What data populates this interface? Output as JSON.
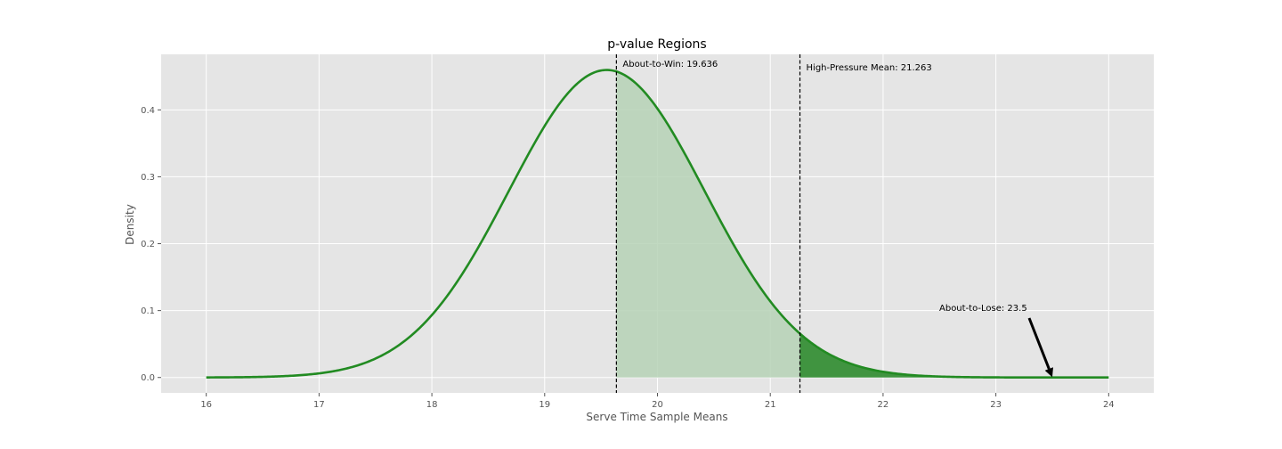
{
  "chart_data": {
    "type": "line",
    "title": "p-value Regions",
    "xlabel": "Serve Time Sample Means",
    "ylabel": "Density",
    "xlim": [
      15.6,
      24.4
    ],
    "ylim": [
      -0.023,
      0.483
    ],
    "xticks": [
      16,
      17,
      18,
      19,
      20,
      21,
      22,
      23,
      24
    ],
    "yticks": [
      0.0,
      0.1,
      0.2,
      0.3,
      0.4
    ],
    "ytick_labels": [
      "0.0",
      "0.1",
      "0.2",
      "0.3",
      "0.4"
    ],
    "grid": true,
    "distribution": {
      "mean": 19.55,
      "sd": 0.868,
      "x_min": 16,
      "x_max": 24
    },
    "series_color": "#228B22",
    "light_fill_color": "#b6d2b6",
    "dark_fill_color": "#2e8b2e",
    "plot_background": "#e5e5e5",
    "vlines": [
      {
        "x": 19.636,
        "label": "About-to-Win: 19.636"
      },
      {
        "x": 21.263,
        "label": "High-Pressure Mean: 21.263"
      }
    ],
    "shaded_regions": [
      {
        "from": 19.636,
        "to": 21.263,
        "shade": "light"
      },
      {
        "from": 21.263,
        "to": 24,
        "shade": "dark"
      }
    ],
    "arrow_annotation": {
      "label": "About-to-Lose: 23.5",
      "x": 23.5,
      "y": 0.0005
    }
  }
}
